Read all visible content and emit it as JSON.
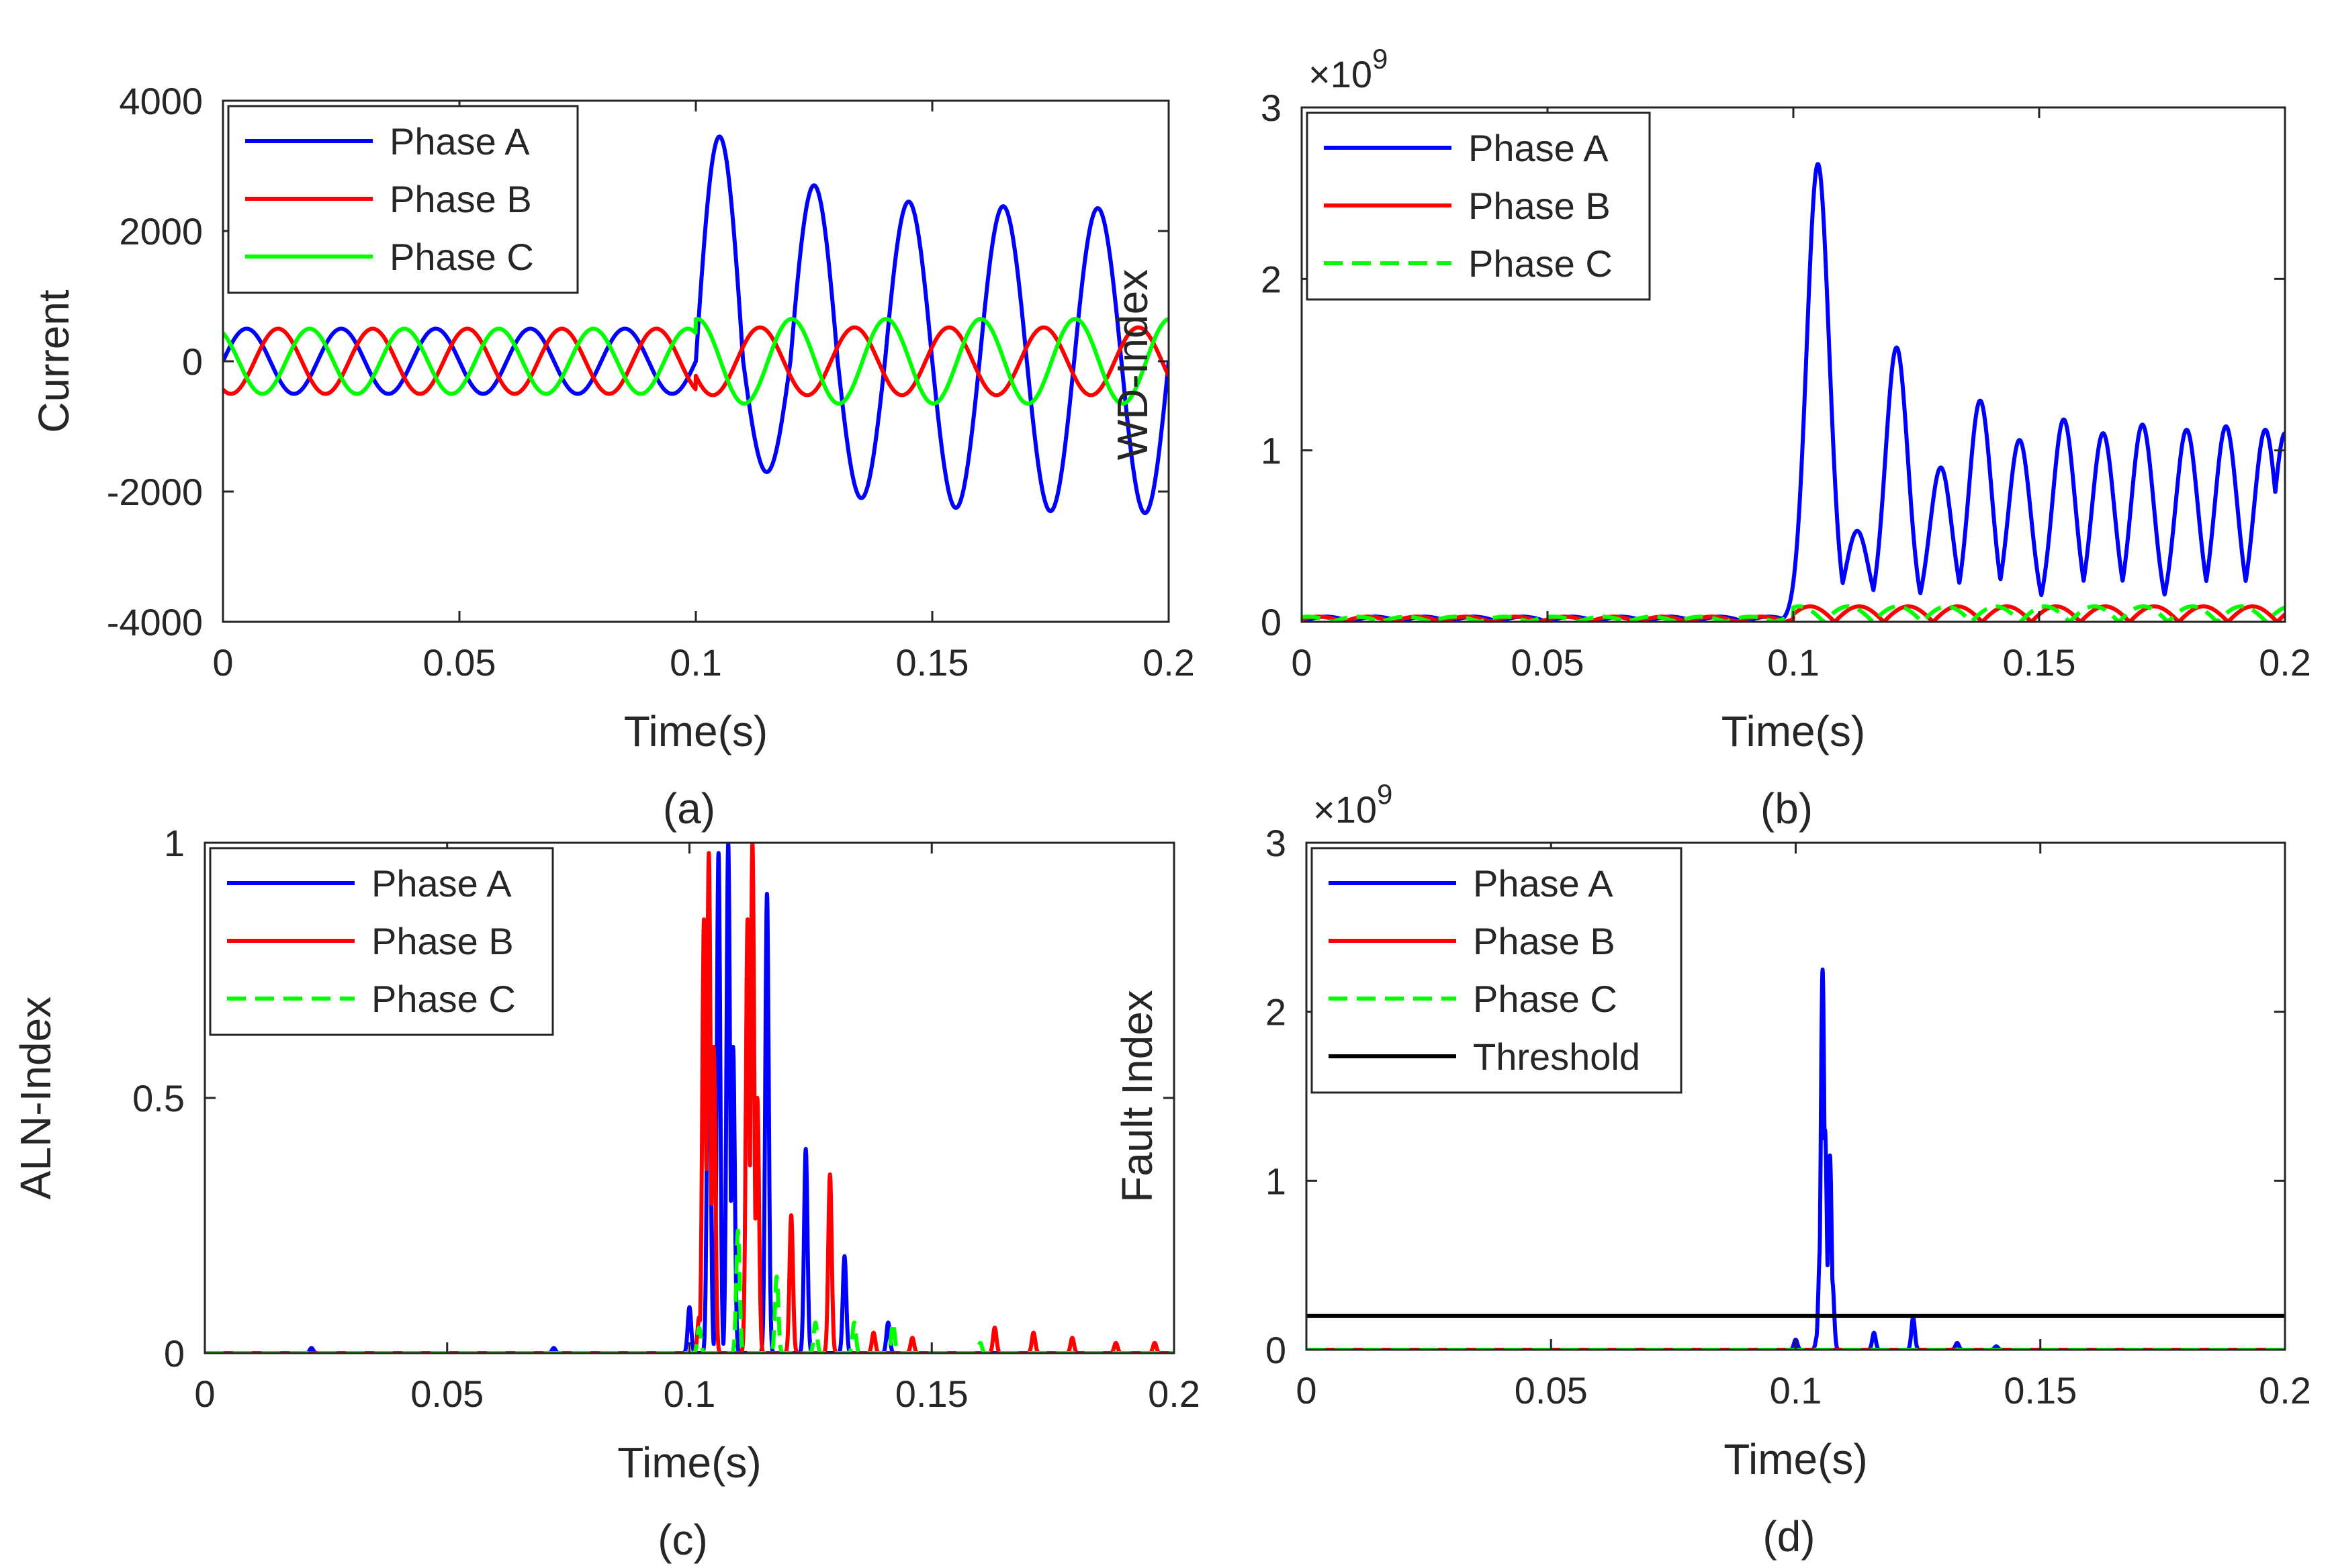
{
  "chart_data": [
    {
      "id": "a",
      "type": "line",
      "caption": "(a)",
      "xlabel": "Time(s)",
      "ylabel": "Current",
      "xlim": [
        0,
        0.2
      ],
      "ylim": [
        -4000,
        4000
      ],
      "xticks": [
        0,
        0.05,
        0.1,
        0.15,
        0.2
      ],
      "xtick_labels": [
        "0",
        "0.05",
        "0.1",
        "0.15",
        "0.2"
      ],
      "yticks": [
        -4000,
        -2000,
        0,
        2000,
        4000
      ],
      "ytick_labels": [
        "-4000",
        "-2000",
        "0",
        "2000",
        "4000"
      ],
      "legend_position": "top-left",
      "series": [
        {
          "name": "Phase A",
          "color": "#0000ff",
          "style": "solid",
          "description": "50 Hz sinusoid, amplitude 500 before fault at 0.1 s; after fault amplitude jumps to ~3400 peak then decays to ~2300",
          "pre_fault_amplitude": 500,
          "post_fault_peaks": [
            3450,
            -1700,
            2700,
            -2100,
            2450,
            -2250,
            2380,
            -2300,
            2350,
            -2330
          ],
          "phase_deg": 0
        },
        {
          "name": "Phase B",
          "color": "#ff0000",
          "style": "solid",
          "description": "50 Hz sinusoid, amplitude ~500 throughout, small disturbance after fault",
          "pre_fault_amplitude": 500,
          "post_fault_amplitude": 520,
          "phase_deg": -120
        },
        {
          "name": "Phase C",
          "color": "#00ff00",
          "style": "solid",
          "description": "50 Hz sinusoid, amplitude ~500 before fault, ~650 after fault",
          "pre_fault_amplitude": 500,
          "post_fault_amplitude": 650,
          "phase_deg": 120
        }
      ]
    },
    {
      "id": "b",
      "type": "line",
      "caption": "(b)",
      "xlabel": "Time(s)",
      "ylabel": "WD-Index",
      "exponent_label": "×10",
      "exponent_power": "9",
      "scale": 1000000000,
      "xlim": [
        0,
        0.2
      ],
      "ylim": [
        0,
        3
      ],
      "xticks": [
        0,
        0.05,
        0.1,
        0.15,
        0.2
      ],
      "xtick_labels": [
        "0",
        "0.05",
        "0.1",
        "0.15",
        "0.2"
      ],
      "yticks": [
        0,
        1,
        2,
        3
      ],
      "ytick_labels": [
        "0",
        "1",
        "2",
        "3"
      ],
      "legend_position": "top-left",
      "series": [
        {
          "name": "Phase A",
          "color": "#0000ff",
          "style": "solid",
          "baseline": 0.03,
          "peaks": [
            [
              0.105,
              2.67
            ],
            [
              0.113,
              0.53
            ],
            [
              0.121,
              1.6
            ],
            [
              0.13,
              0.9
            ],
            [
              0.138,
              1.29
            ],
            [
              0.146,
              1.06
            ],
            [
              0.155,
              1.18
            ],
            [
              0.163,
              1.1
            ],
            [
              0.171,
              1.15
            ],
            [
              0.18,
              1.12
            ],
            [
              0.188,
              1.14
            ],
            [
              0.196,
              1.12
            ],
            [
              0.2,
              1.1
            ]
          ]
        },
        {
          "name": "Phase B",
          "color": "#ff0000",
          "style": "solid",
          "baseline": 0.03,
          "max_after_fault": 0.09
        },
        {
          "name": "Phase C",
          "color": "#00ff00",
          "style": "dashed",
          "baseline": 0.03,
          "max_after_fault": 0.09
        }
      ]
    },
    {
      "id": "c",
      "type": "line",
      "caption": "(c)",
      "xlabel": "Time(s)",
      "ylabel": "ALN-Index",
      "xlim": [
        0,
        0.2
      ],
      "ylim": [
        0,
        1
      ],
      "xticks": [
        0,
        0.05,
        0.1,
        0.15,
        0.2
      ],
      "xtick_labels": [
        "0",
        "0.05",
        "0.1",
        "0.15",
        "0.2"
      ],
      "yticks": [
        0,
        0.5,
        1
      ],
      "ytick_labels": [
        "0",
        "0.5",
        "1"
      ],
      "legend_position": "top-left",
      "series": [
        {
          "name": "Phase A",
          "color": "#0000ff",
          "style": "solid",
          "spikes": [
            [
              0.1,
              0.09
            ],
            [
              0.104,
              0.82
            ],
            [
              0.106,
              0.98
            ],
            [
              0.108,
              1.0
            ],
            [
              0.109,
              0.6
            ],
            [
              0.116,
              0.9
            ],
            [
              0.124,
              0.4
            ],
            [
              0.132,
              0.19
            ],
            [
              0.141,
              0.06
            ],
            [
              0.022,
              0.01
            ],
            [
              0.072,
              0.01
            ]
          ]
        },
        {
          "name": "Phase B",
          "color": "#ff0000",
          "style": "solid",
          "spikes": [
            [
              0.102,
              0.07
            ],
            [
              0.103,
              0.85
            ],
            [
              0.104,
              0.98
            ],
            [
              0.105,
              0.6
            ],
            [
              0.112,
              0.85
            ],
            [
              0.113,
              1.0
            ],
            [
              0.114,
              0.5
            ],
            [
              0.121,
              0.27
            ],
            [
              0.129,
              0.35
            ],
            [
              0.138,
              0.04
            ],
            [
              0.146,
              0.03
            ],
            [
              0.163,
              0.05
            ],
            [
              0.171,
              0.04
            ],
            [
              0.179,
              0.03
            ],
            [
              0.188,
              0.02
            ],
            [
              0.196,
              0.02
            ]
          ]
        },
        {
          "name": "Phase C",
          "color": "#00ff00",
          "style": "dashed",
          "spikes": [
            [
              0.102,
              0.05
            ],
            [
              0.11,
              0.24
            ],
            [
              0.118,
              0.15
            ],
            [
              0.126,
              0.06
            ],
            [
              0.134,
              0.06
            ],
            [
              0.142,
              0.06
            ],
            [
              0.16,
              0.02
            ]
          ]
        }
      ]
    },
    {
      "id": "d",
      "type": "line",
      "caption": "(d)",
      "xlabel": "Time(s)",
      "ylabel": "Fault Index",
      "exponent_label": "×10",
      "exponent_power": "9",
      "scale": 1000000000,
      "xlim": [
        0,
        0.2
      ],
      "ylim": [
        0,
        3
      ],
      "xticks": [
        0,
        0.05,
        0.1,
        0.15,
        0.2
      ],
      "xtick_labels": [
        "0",
        "0.05",
        "0.1",
        "0.15",
        "0.2"
      ],
      "yticks": [
        0,
        1,
        2,
        3
      ],
      "ytick_labels": [
        "0",
        "1",
        "2",
        "3"
      ],
      "legend_position": "top-left",
      "series": [
        {
          "name": "Phase A",
          "color": "#0000ff",
          "style": "solid",
          "spikes": [
            [
              0.1,
              0.06
            ],
            [
              0.1045,
              0.1
            ],
            [
              0.105,
              0.6
            ],
            [
              0.1055,
              2.25
            ],
            [
              0.106,
              1.3
            ],
            [
              0.1065,
              0.5
            ],
            [
              0.107,
              1.15
            ],
            [
              0.1075,
              0.4
            ],
            [
              0.116,
              0.1
            ],
            [
              0.124,
              0.19
            ],
            [
              0.133,
              0.04
            ],
            [
              0.141,
              0.02
            ]
          ]
        },
        {
          "name": "Phase B",
          "color": "#ff0000",
          "style": "solid",
          "constant": 0.0
        },
        {
          "name": "Phase C",
          "color": "#00ff00",
          "style": "dashed",
          "constant": 0.0
        },
        {
          "name": "Threshold",
          "color": "#000000",
          "style": "solid",
          "constant": 0.2
        }
      ]
    }
  ]
}
